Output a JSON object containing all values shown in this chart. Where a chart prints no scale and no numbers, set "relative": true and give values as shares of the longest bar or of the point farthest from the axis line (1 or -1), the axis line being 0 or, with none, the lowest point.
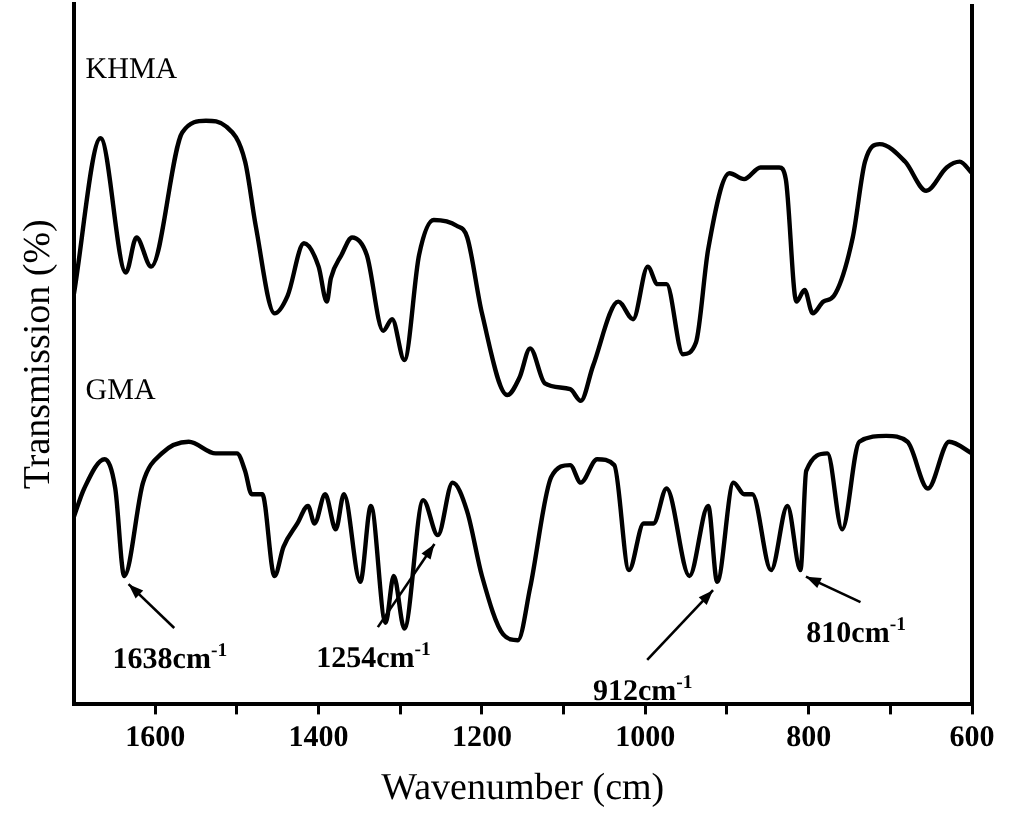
{
  "chart_data": {
    "type": "line",
    "relative": true,
    "xlabel": "Wavenumber (cm)",
    "ylabel": "Transmission (%)",
    "xlim": [
      1700,
      600
    ],
    "xticks": [
      1600,
      {
        "value": 1500,
        "label": null
      },
      1400,
      {
        "value": 1300,
        "label": null
      },
      1200,
      {
        "value": 1100,
        "label": null
      },
      1000,
      {
        "value": 900,
        "label": null
      },
      800,
      {
        "value": 700,
        "label": null
      },
      600
    ],
    "grid": false,
    "legend": false,
    "marker": "none",
    "line_style": "solid",
    "series": [
      {
        "name": "KHMA",
        "color": "#000000",
        "x": [
          1700,
          1667,
          1636,
          1623,
          1605,
          1567,
          1538,
          1513,
          1490,
          1477,
          1454,
          1438,
          1418,
          1400,
          1390,
          1385,
          1372,
          1359,
          1341,
          1321,
          1310,
          1295,
          1277,
          1259,
          1231,
          1218,
          1200,
          1169,
          1154,
          1141,
          1123,
          1092,
          1079,
          1064,
          1033,
          1015,
          997,
          985,
          974,
          954,
          938,
          923,
          897,
          879,
          859,
          836,
          828,
          815,
          805,
          795,
          782,
          769,
          746,
          731,
          713,
          682,
          656,
          631,
          615,
          600
        ],
        "values": [
          0.7,
          0.97,
          0.74,
          0.8,
          0.75,
          0.98,
          1.0,
          0.99,
          0.93,
          0.82,
          0.67,
          0.7,
          0.79,
          0.75,
          0.69,
          0.73,
          0.77,
          0.8,
          0.77,
          0.64,
          0.66,
          0.59,
          0.77,
          0.83,
          0.82,
          0.8,
          0.67,
          0.53,
          0.56,
          0.61,
          0.55,
          0.54,
          0.52,
          0.58,
          0.69,
          0.66,
          0.75,
          0.72,
          0.72,
          0.6,
          0.62,
          0.78,
          0.91,
          0.9,
          0.92,
          0.92,
          0.9,
          0.69,
          0.71,
          0.67,
          0.69,
          0.7,
          0.8,
          0.93,
          0.96,
          0.93,
          0.88,
          0.92,
          0.93,
          0.91
        ]
      },
      {
        "name": "GMA",
        "color": "#000000",
        "x": [
          1700,
          1687,
          1662,
          1649,
          1638,
          1615,
          1592,
          1559,
          1526,
          1500,
          1490,
          1482,
          1469,
          1454,
          1443,
          1426,
          1413,
          1405,
          1392,
          1379,
          1369,
          1349,
          1336,
          1318,
          1308,
          1295,
          1272,
          1254,
          1236,
          1218,
          1200,
          1174,
          1156,
          1141,
          1115,
          1092,
          1079,
          1059,
          1038,
          1020,
          1002,
          990,
          974,
          946,
          923,
          912,
          892,
          879,
          869,
          846,
          826,
          810,
          803,
          777,
          759,
          738,
          705,
          679,
          654,
          628,
          600
        ],
        "values": [
          0.32,
          0.37,
          0.42,
          0.37,
          0.22,
          0.38,
          0.43,
          0.45,
          0.43,
          0.43,
          0.4,
          0.36,
          0.36,
          0.22,
          0.27,
          0.31,
          0.34,
          0.31,
          0.36,
          0.3,
          0.36,
          0.21,
          0.34,
          0.14,
          0.22,
          0.13,
          0.35,
          0.29,
          0.38,
          0.33,
          0.22,
          0.12,
          0.11,
          0.2,
          0.39,
          0.41,
          0.38,
          0.42,
          0.41,
          0.23,
          0.31,
          0.31,
          0.37,
          0.22,
          0.34,
          0.21,
          0.38,
          0.36,
          0.36,
          0.23,
          0.34,
          0.23,
          0.4,
          0.43,
          0.3,
          0.45,
          0.46,
          0.45,
          0.37,
          0.45,
          0.43
        ]
      }
    ],
    "annotations": [
      {
        "text": "1638cm$^{-1}$",
        "x": 1638,
        "y": 0.22
      },
      {
        "text": "1254cm$^{-1}$",
        "x": 1254,
        "y": 0.29
      },
      {
        "text": "912cm$^{-1}$",
        "x": 912,
        "y": 0.21
      },
      {
        "text": "810cm$^{-1}$",
        "x": 810,
        "y": 0.23
      }
    ]
  }
}
